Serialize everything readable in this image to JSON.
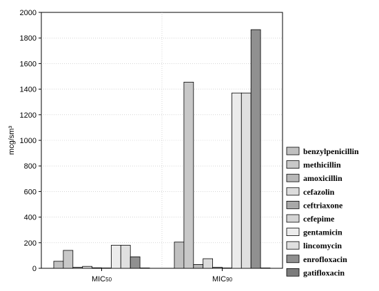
{
  "chart_data": {
    "type": "bar",
    "ylabel": "mcg/sm³",
    "xlabel": "",
    "ylim": [
      0,
      2000
    ],
    "yticks": [
      0,
      200,
      400,
      600,
      800,
      1000,
      1200,
      1400,
      1600,
      1800,
      2000
    ],
    "grid": "dotted",
    "legend": "right",
    "categories": [
      "MIC50",
      "MIC90"
    ],
    "category_labels": [
      {
        "main": "MIC",
        "sub": "50"
      },
      {
        "main": "MIC",
        "sub": "90"
      }
    ],
    "series": [
      {
        "name": "benzylpenicillin",
        "values": [
          55,
          205
        ],
        "color": "#c0c0c0"
      },
      {
        "name": "methicillin",
        "values": [
          140,
          1455
        ],
        "color": "#c8c8c8"
      },
      {
        "name": "amoxicillin",
        "values": [
          8,
          30
        ],
        "color": "#b8b8b8"
      },
      {
        "name": "cefazolin",
        "values": [
          15,
          75
        ],
        "color": "#dcdcdc"
      },
      {
        "name": "ceftriaxone",
        "values": [
          4,
          8
        ],
        "color": "#a8a8a8"
      },
      {
        "name": "cefepime",
        "values": [
          2,
          2
        ],
        "color": "#d4d4d4"
      },
      {
        "name": "gentamicin",
        "values": [
          180,
          1370
        ],
        "color": "#ececec"
      },
      {
        "name": "lincomycin",
        "values": [
          180,
          1370
        ],
        "color": "#e0e0e0"
      },
      {
        "name": "enrofloxacin",
        "values": [
          90,
          1865
        ],
        "color": "#909090"
      },
      {
        "name": "gatifloxacin",
        "values": [
          2,
          2
        ],
        "color": "#7c7c7c"
      }
    ]
  }
}
